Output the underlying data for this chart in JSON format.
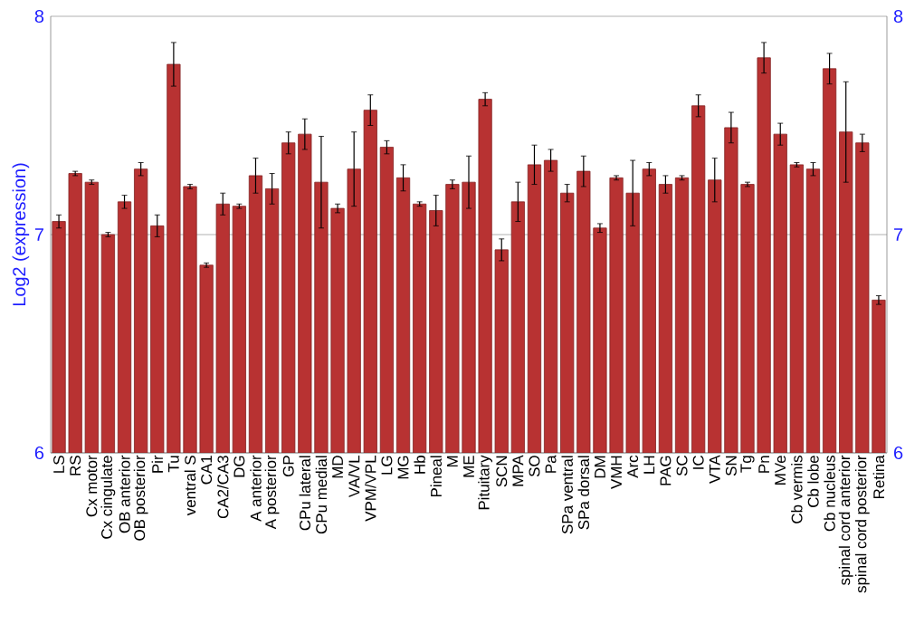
{
  "chart_data": {
    "type": "bar",
    "ylabel": "Log2 (expression)",
    "categories": [
      "LS",
      "RS",
      "Cx motor",
      "Cx cingulate",
      "OB anterior",
      "OB posterior",
      "Pir",
      "Tu",
      "ventral S",
      "CA1",
      "CA2/CA3",
      "DG",
      "A anterior",
      "A posterior",
      "GP",
      "CPu lateral",
      "CPu medial",
      "MD",
      "VA/VL",
      "VPM/VPL",
      "LG",
      "MG",
      "Hb",
      "Pineal",
      "M",
      "ME",
      "Pituitary",
      "SCN",
      "MPA",
      "SO",
      "Pa",
      "SPa ventral",
      "SPa dorsal",
      "DM",
      "VMH",
      "Arc",
      "LH",
      "PAG",
      "SC",
      "IC",
      "VTA",
      "SN",
      "Tg",
      "Pn",
      "MVe",
      "Cb vermis",
      "Cb lobe",
      "Cb nucleus",
      "spinal cord anterior",
      "spinal cord posterior",
      "Retina"
    ],
    "values": [
      7.06,
      7.28,
      7.24,
      7.0,
      7.15,
      7.3,
      7.04,
      7.78,
      7.22,
      6.86,
      7.14,
      7.13,
      7.27,
      7.21,
      7.42,
      7.46,
      7.24,
      7.12,
      7.3,
      7.57,
      7.4,
      7.26,
      7.14,
      7.11,
      7.23,
      7.24,
      7.62,
      6.93,
      7.15,
      7.32,
      7.34,
      7.19,
      7.29,
      7.03,
      7.26,
      7.19,
      7.3,
      7.23,
      7.26,
      7.59,
      7.25,
      7.49,
      7.23,
      7.81,
      7.46,
      7.32,
      7.3,
      7.76,
      7.47,
      7.42,
      6.7
    ],
    "errors": [
      0.03,
      0.01,
      0.01,
      0.01,
      0.03,
      0.03,
      0.05,
      0.1,
      0.01,
      0.01,
      0.05,
      0.01,
      0.08,
      0.07,
      0.05,
      0.07,
      0.21,
      0.02,
      0.17,
      0.07,
      0.03,
      0.06,
      0.01,
      0.07,
      0.02,
      0.12,
      0.03,
      0.05,
      0.09,
      0.09,
      0.05,
      0.04,
      0.07,
      0.02,
      0.01,
      0.15,
      0.03,
      0.04,
      0.01,
      0.05,
      0.1,
      0.07,
      0.01,
      0.07,
      0.05,
      0.01,
      0.03,
      0.07,
      0.23,
      0.04,
      0.02
    ],
    "color": "#b83232",
    "ylim": [
      6,
      8
    ],
    "yticks": [
      6,
      7,
      8
    ],
    "y2lim": [
      6,
      8
    ],
    "y2ticks": [
      6,
      7,
      8
    ],
    "grid": "y"
  }
}
